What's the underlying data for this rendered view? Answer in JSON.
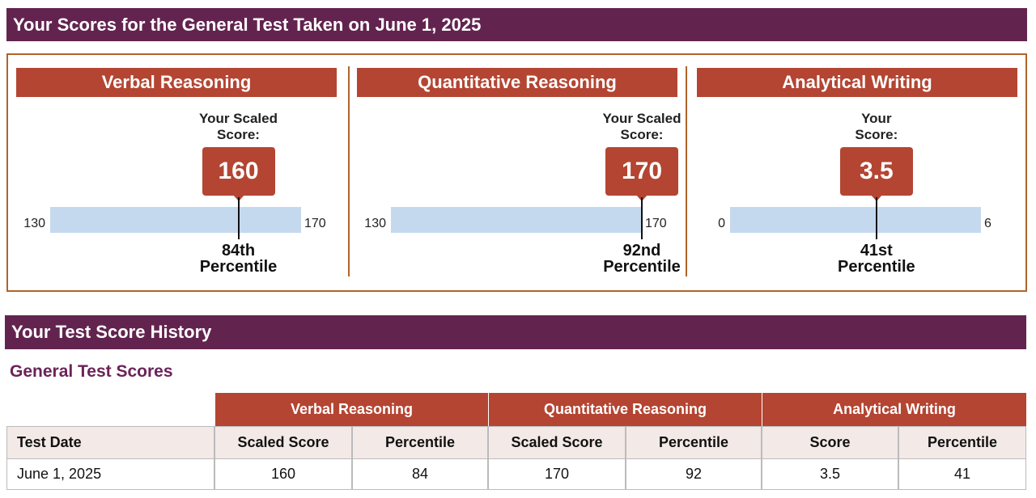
{
  "header": {
    "title": "Your Scores for the General Test Taken on June 1, 2025"
  },
  "sections": [
    {
      "title": "Verbal Reasoning",
      "score_label": [
        "Your Scaled",
        "Score:"
      ],
      "score": 160,
      "min": 130,
      "max": 170,
      "percentile": [
        "84th",
        "Percentile"
      ]
    },
    {
      "title": "Quantitative Reasoning",
      "score_label": [
        "Your Scaled",
        "Score:"
      ],
      "score": 170,
      "min": 130,
      "max": 170,
      "percentile": [
        "92nd",
        "Percentile"
      ]
    },
    {
      "title": "Analytical Writing",
      "score_label": [
        "Your",
        "Score:"
      ],
      "score": 3.5,
      "min": 0,
      "max": 6,
      "percentile": [
        "41st",
        "Percentile"
      ]
    }
  ],
  "history": {
    "title": "Your Test Score History",
    "subtitle": "General Test Scores",
    "table": {
      "groups": [
        "Verbal Reasoning",
        "Quantitative Reasoning",
        "Analytical Writing"
      ],
      "columns": [
        "Test Date",
        "Scaled Score",
        "Percentile",
        "Scaled Score",
        "Percentile",
        "Score",
        "Percentile"
      ],
      "rows": [
        [
          "June 1, 2025",
          160,
          84,
          170,
          92,
          3.5,
          41
        ]
      ]
    }
  }
}
